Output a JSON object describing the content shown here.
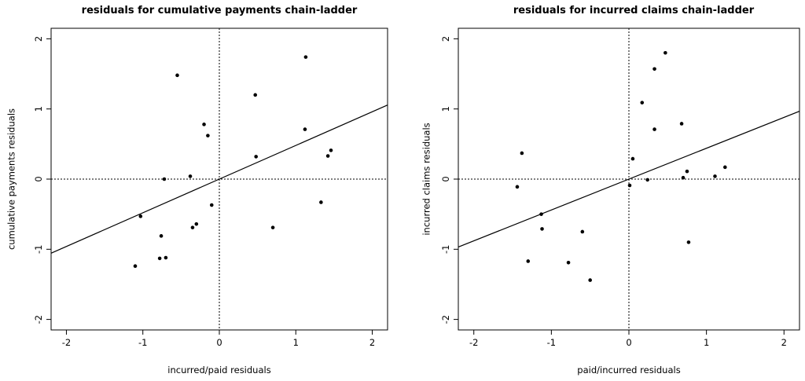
{
  "chart_data": [
    {
      "type": "scatter",
      "title": "residuals for cumulative payments chain-ladder",
      "xlabel": "incurred/paid residuals",
      "ylabel": "cumulative payments residuals",
      "xlim": [
        -2.2,
        2.2
      ],
      "ylim": [
        -2.15,
        2.15
      ],
      "xticks": [
        -2,
        -1,
        0,
        1,
        2
      ],
      "yticks": [
        -2,
        -1,
        0,
        1,
        2
      ],
      "xtick_labels": [
        "-2",
        "-1",
        "0",
        "1",
        "2"
      ],
      "ytick_labels": [
        "-2",
        "-1",
        "0",
        "1",
        "2"
      ],
      "reference_lines": {
        "x": 0,
        "y": 0,
        "style": "dotted"
      },
      "fit_line": {
        "intercept": 0.0,
        "slope": 0.48
      },
      "points": [
        {
          "x": -0.55,
          "y": 1.48
        },
        {
          "x": -0.2,
          "y": 0.78
        },
        {
          "x": -0.15,
          "y": 0.62
        },
        {
          "x": -0.38,
          "y": 0.04
        },
        {
          "x": -0.72,
          "y": 0.0
        },
        {
          "x": -0.1,
          "y": -0.37
        },
        {
          "x": -0.3,
          "y": -0.64
        },
        {
          "x": -0.35,
          "y": -0.69
        },
        {
          "x": -1.03,
          "y": -0.53
        },
        {
          "x": -0.76,
          "y": -0.81
        },
        {
          "x": -0.78,
          "y": -1.13
        },
        {
          "x": -0.7,
          "y": -1.12
        },
        {
          "x": -1.1,
          "y": -1.24
        },
        {
          "x": 0.47,
          "y": 1.2
        },
        {
          "x": 0.48,
          "y": 0.32
        },
        {
          "x": 0.7,
          "y": -0.69
        },
        {
          "x": 1.13,
          "y": 1.74
        },
        {
          "x": 1.12,
          "y": 0.71
        },
        {
          "x": 1.42,
          "y": 0.33
        },
        {
          "x": 1.46,
          "y": 0.41
        },
        {
          "x": 1.33,
          "y": -0.33
        }
      ]
    },
    {
      "type": "scatter",
      "title": "residuals for incurred claims chain-ladder",
      "xlabel": "paid/incurred residuals",
      "ylabel": "incurred claims residuals",
      "xlim": [
        -2.2,
        2.2
      ],
      "ylim": [
        -2.15,
        2.15
      ],
      "xticks": [
        -2,
        -1,
        0,
        1,
        2
      ],
      "yticks": [
        -2,
        -1,
        0,
        1,
        2
      ],
      "xtick_labels": [
        "-2",
        "-1",
        "0",
        "1",
        "2"
      ],
      "ytick_labels": [
        "-2",
        "-1",
        "0",
        "1",
        "2"
      ],
      "reference_lines": {
        "x": 0,
        "y": 0,
        "style": "dotted"
      },
      "fit_line": {
        "intercept": 0.0,
        "slope": 0.44
      },
      "points": [
        {
          "x": -1.38,
          "y": 0.37
        },
        {
          "x": -1.44,
          "y": -0.11
        },
        {
          "x": -1.13,
          "y": -0.5
        },
        {
          "x": -1.12,
          "y": -0.71
        },
        {
          "x": -1.3,
          "y": -1.17
        },
        {
          "x": -0.6,
          "y": -0.75
        },
        {
          "x": -0.78,
          "y": -1.19
        },
        {
          "x": -0.5,
          "y": -1.44
        },
        {
          "x": 0.05,
          "y": 0.29
        },
        {
          "x": 0.01,
          "y": -0.09
        },
        {
          "x": 0.24,
          "y": -0.01
        },
        {
          "x": 0.17,
          "y": 1.09
        },
        {
          "x": 0.33,
          "y": 1.57
        },
        {
          "x": 0.47,
          "y": 1.8
        },
        {
          "x": 0.33,
          "y": 0.71
        },
        {
          "x": 0.68,
          "y": 0.79
        },
        {
          "x": 0.7,
          "y": 0.02
        },
        {
          "x": 0.75,
          "y": 0.11
        },
        {
          "x": 0.77,
          "y": -0.9
        },
        {
          "x": 1.11,
          "y": 0.04
        },
        {
          "x": 1.24,
          "y": 0.17
        }
      ]
    }
  ]
}
